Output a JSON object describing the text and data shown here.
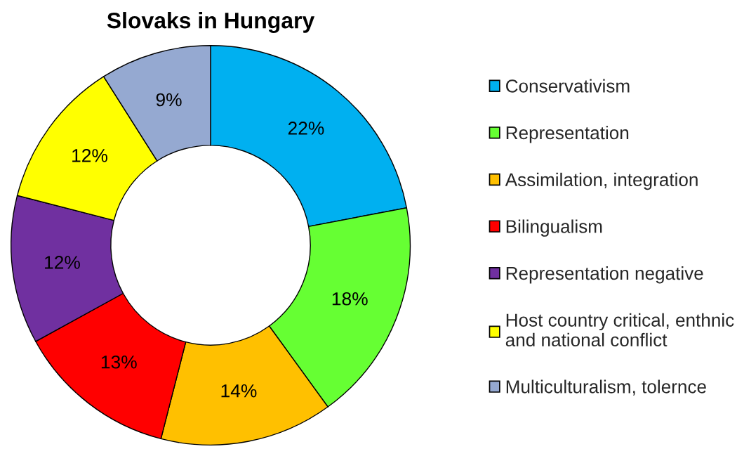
{
  "chart_data": {
    "type": "donut",
    "title": "Slovaks in Hungary",
    "categories": [
      "Conservativism",
      "Representation",
      "Assimilation, integration",
      "Bilingualism",
      "Representation negative",
      "Host country critical, enthnic\nand national conflict",
      "Multiculturalism, tolernce"
    ],
    "values": [
      22,
      18,
      14,
      13,
      12,
      12,
      9
    ],
    "colors": [
      "#00b0f0",
      "#66ff33",
      "#ffc000",
      "#ff0000",
      "#7030a0",
      "#ffff00",
      "#95a9d1"
    ],
    "value_labels": [
      "22%",
      "18%",
      "14%",
      "13%",
      "12%",
      "12%",
      "9%"
    ],
    "legend": "right"
  }
}
